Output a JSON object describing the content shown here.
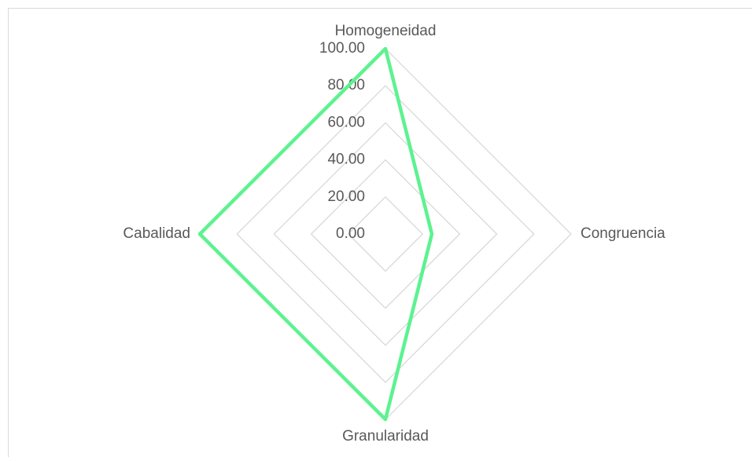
{
  "chart_data": {
    "type": "radar",
    "categories": [
      "Homogeneidad",
      "Congruencia",
      "Granularidad",
      "Cabalidad"
    ],
    "values": [
      100,
      25,
      100,
      100
    ],
    "color": "#5df290",
    "ylim": [
      0,
      100
    ],
    "yticks": [
      {
        "value": 0,
        "label": "0.00"
      },
      {
        "value": 20,
        "label": "20.00"
      },
      {
        "value": 40,
        "label": "40.00"
      },
      {
        "value": 60,
        "label": "60.00"
      },
      {
        "value": 80,
        "label": "80.00"
      },
      {
        "value": 100,
        "label": "100.00"
      }
    ],
    "grid": true
  }
}
